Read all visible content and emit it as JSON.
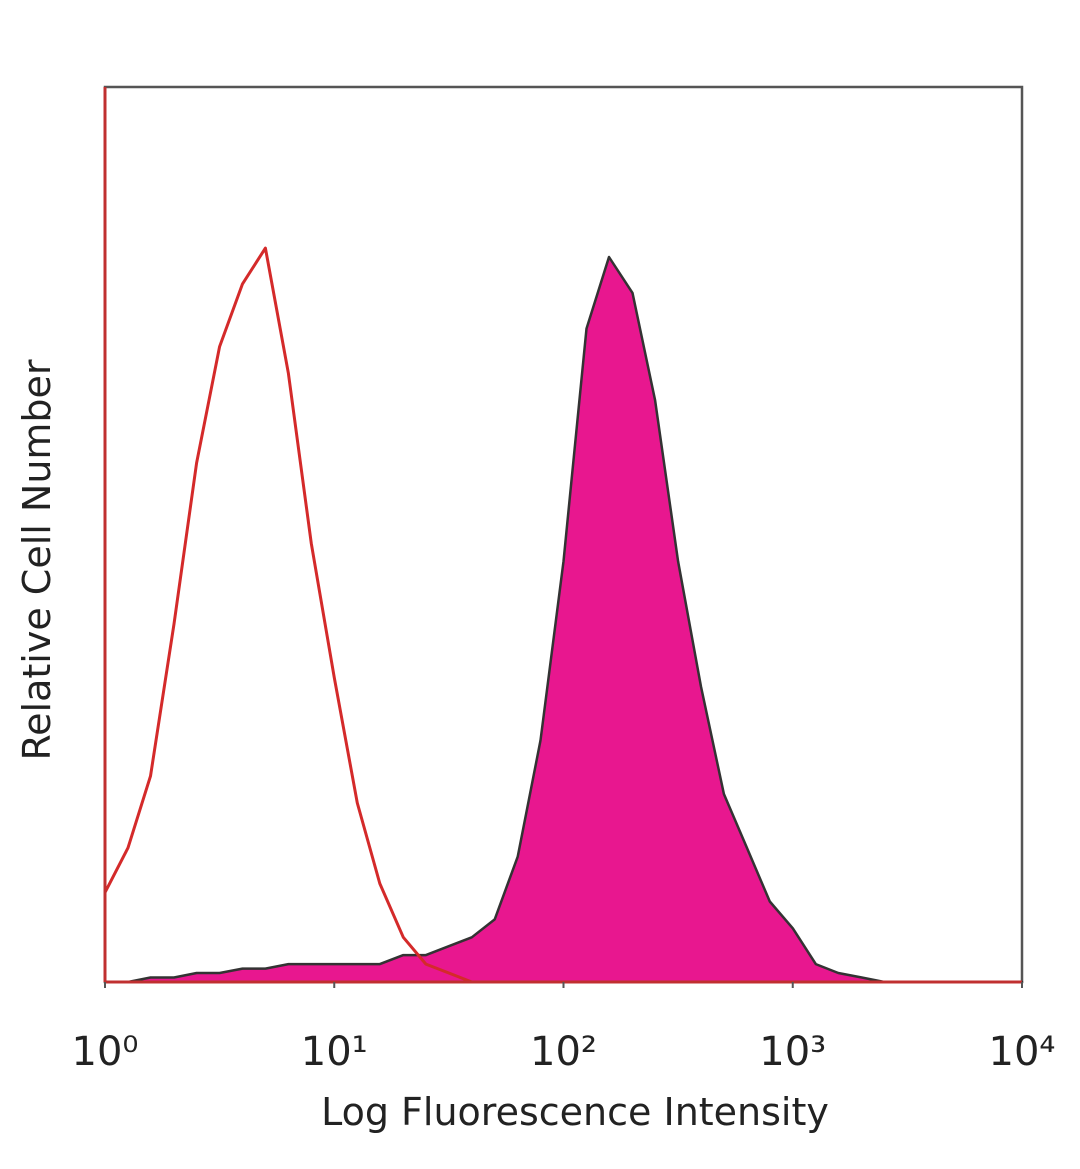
{
  "chart_data": {
    "type": "histogram-overlay",
    "xlabel": "Log Fluorescence Intensity",
    "ylabel": "Relative Cell Number",
    "xscale": "log",
    "xlim": [
      1,
      10000
    ],
    "xticks": [
      {
        "value": 1,
        "label": "10⁰"
      },
      {
        "value": 10,
        "label": "10¹"
      },
      {
        "value": 100,
        "label": "10²"
      },
      {
        "value": 1000,
        "label": "10³"
      },
      {
        "value": 10000,
        "label": "10⁴"
      }
    ],
    "ylim": [
      0,
      100
    ],
    "x": [
      1,
      1.26,
      1.58,
      2,
      2.51,
      3.16,
      3.98,
      5.01,
      6.31,
      7.94,
      10,
      12.6,
      15.8,
      20,
      25.1,
      31.6,
      39.8,
      50.1,
      63.1,
      79.4,
      100,
      126,
      158,
      200,
      251,
      316,
      398,
      501,
      631,
      794,
      1000,
      1260,
      1580,
      2000,
      2510,
      3160,
      3980,
      5010,
      6310,
      7940,
      10000
    ],
    "series": [
      {
        "color": "#e8178f",
        "edge": "#333333",
        "fill": true,
        "values": [
          0,
          0,
          0.5,
          0.5,
          1,
          1,
          1.5,
          1.5,
          2,
          2,
          2,
          2,
          2,
          3,
          3,
          4,
          5,
          7,
          14,
          27,
          47,
          73,
          81,
          77,
          65,
          47,
          33,
          21,
          15,
          9,
          6,
          2,
          1,
          0.5,
          0,
          0,
          0,
          0,
          0,
          0,
          0
        ]
      },
      {
        "color": "#d42a2a",
        "fill": false,
        "values": [
          10,
          15,
          23,
          40,
          58,
          71,
          78,
          82,
          68,
          49,
          34,
          20,
          11,
          5,
          2,
          1,
          0,
          0,
          0,
          0,
          0,
          0,
          0,
          0,
          0,
          0,
          0,
          0,
          0,
          0,
          0,
          0,
          0,
          0,
          0,
          0,
          0,
          0,
          0,
          0,
          0
        ]
      }
    ]
  }
}
